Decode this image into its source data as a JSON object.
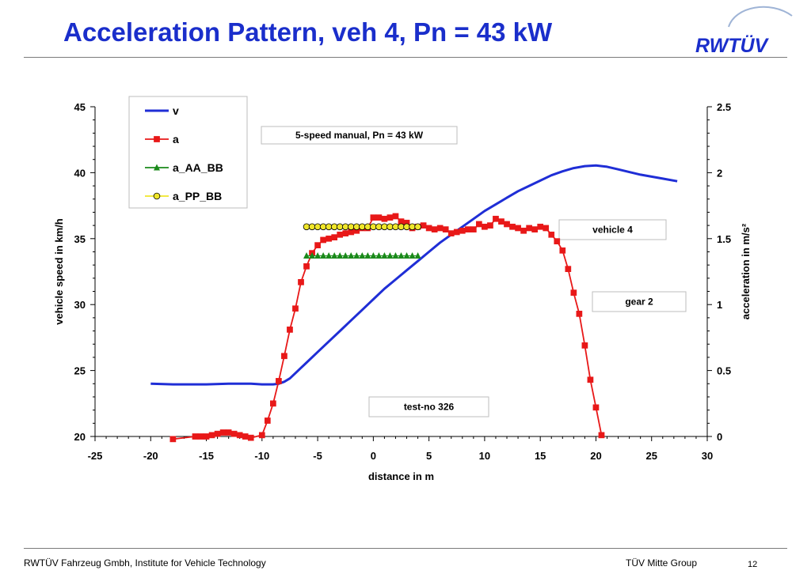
{
  "page": {
    "title": "Acceleration Pattern, veh 4, Pn = 43 kW",
    "logo_text": "RWTÜV",
    "footer_left": "RWTÜV Fahrzeug Gmbh, Institute for Vehicle Technology",
    "footer_mid": "TÜV Mitte Group",
    "page_number": "12",
    "colors": {
      "title": "#1a2ecb",
      "logo": "#1a2ecb"
    }
  },
  "chart_data": {
    "type": "line",
    "title": "",
    "xlabel": "distance in m",
    "ylabel": "vehicle speed in km/h",
    "y2label": "acceleration in m/s²",
    "xlim": [
      -25,
      30
    ],
    "ylim": [
      20,
      45
    ],
    "y2lim": [
      0,
      2.5
    ],
    "x_ticks": [
      "-25",
      "-20",
      "-15",
      "-10",
      "-5",
      "0",
      "5",
      "10",
      "15",
      "20",
      "25",
      "30"
    ],
    "y_ticks": [
      "20",
      "25",
      "30",
      "35",
      "40",
      "45"
    ],
    "y2_ticks": [
      "0",
      "0.5",
      "1",
      "1.5",
      "2",
      "2.5"
    ],
    "grid": false,
    "legend_position": "top-left",
    "annotations": [
      "5-speed manual, Pn = 43 kW",
      "vehicle 4",
      "gear 2",
      "test-no 326"
    ],
    "series": [
      {
        "name": "v",
        "axis": "left",
        "color": "#1f2ed6",
        "marker": "none",
        "x": [
          -20,
          -18,
          -15,
          -13,
          -11,
          -10,
          -9,
          -8.5,
          -8,
          -7.5,
          -7,
          -6,
          -5,
          -4,
          -3,
          -2,
          -1,
          0,
          1,
          2,
          3,
          4,
          5,
          6,
          7,
          8,
          9,
          10,
          11,
          12,
          13,
          14,
          15,
          16,
          17,
          18,
          19,
          20,
          21,
          22,
          23,
          24,
          25,
          26,
          27.3
        ],
        "values": [
          24.0,
          23.95,
          23.95,
          24.0,
          24.0,
          23.95,
          23.95,
          24.0,
          24.15,
          24.4,
          24.8,
          25.6,
          26.4,
          27.2,
          28.0,
          28.8,
          29.6,
          30.4,
          31.2,
          31.9,
          32.6,
          33.3,
          34.0,
          34.7,
          35.3,
          35.9,
          36.5,
          37.1,
          37.6,
          38.1,
          38.6,
          39.0,
          39.4,
          39.8,
          40.1,
          40.35,
          40.5,
          40.55,
          40.45,
          40.25,
          40.05,
          39.85,
          39.7,
          39.55,
          39.35
        ]
      },
      {
        "name": "a",
        "axis": "right",
        "color": "#e81818",
        "marker": "square",
        "x": [
          -18,
          -16,
          -15.5,
          -15,
          -14.5,
          -14,
          -13.5,
          -13,
          -12.5,
          -12,
          -11.5,
          -11,
          -10,
          -9.5,
          -9,
          -8.5,
          -8,
          -7.5,
          -7,
          -6.5,
          -6,
          -5.5,
          -5,
          -4.5,
          -4,
          -3.5,
          -3,
          -2.5,
          -2,
          -1.5,
          -1,
          -0.5,
          0,
          0.5,
          1,
          1.5,
          2,
          2.5,
          3,
          3.5,
          4,
          4.5,
          5,
          5.5,
          6,
          6.5,
          7,
          7.5,
          8,
          8.5,
          9,
          9.5,
          10,
          10.5,
          11,
          11.5,
          12,
          12.5,
          13,
          13.5,
          14,
          14.5,
          15,
          15.5,
          16,
          16.5,
          17,
          17.5,
          18,
          18.5,
          19,
          19.5,
          20,
          20.5
        ],
        "values": [
          -0.02,
          0.0,
          0.0,
          0.0,
          0.01,
          0.02,
          0.03,
          0.03,
          0.02,
          0.01,
          0.0,
          -0.01,
          0.01,
          0.12,
          0.25,
          0.42,
          0.61,
          0.81,
          0.97,
          1.17,
          1.29,
          1.39,
          1.45,
          1.49,
          1.5,
          1.51,
          1.53,
          1.54,
          1.55,
          1.56,
          1.58,
          1.58,
          1.66,
          1.66,
          1.65,
          1.66,
          1.67,
          1.63,
          1.62,
          1.58,
          1.59,
          1.6,
          1.58,
          1.57,
          1.58,
          1.57,
          1.54,
          1.55,
          1.56,
          1.57,
          1.57,
          1.61,
          1.59,
          1.6,
          1.65,
          1.63,
          1.61,
          1.59,
          1.58,
          1.56,
          1.58,
          1.57,
          1.59,
          1.58,
          1.53,
          1.48,
          1.41,
          1.27,
          1.09,
          0.93,
          0.69,
          0.43,
          0.22,
          0.01
        ]
      },
      {
        "name": "a_AA_BB",
        "axis": "right",
        "color": "#1a8a1a",
        "marker": "triangle",
        "x": [
          -6,
          -5.5,
          -5,
          -4.5,
          -4,
          -3.5,
          -3,
          -2.5,
          -2,
          -1.5,
          -1,
          -0.5,
          0,
          0.5,
          1,
          1.5,
          2,
          2.5,
          3,
          3.5,
          4
        ],
        "values": [
          1.37,
          1.37,
          1.37,
          1.37,
          1.37,
          1.37,
          1.37,
          1.37,
          1.37,
          1.37,
          1.37,
          1.37,
          1.37,
          1.37,
          1.37,
          1.37,
          1.37,
          1.37,
          1.37,
          1.37,
          1.37
        ]
      },
      {
        "name": "a_PP_BB",
        "axis": "right",
        "color": "#f0e62a",
        "marker": "circle",
        "x": [
          -6,
          -5.5,
          -5,
          -4.5,
          -4,
          -3.5,
          -3,
          -2.5,
          -2,
          -1.5,
          -1,
          -0.5,
          0,
          0.5,
          1,
          1.5,
          2,
          2.5,
          3,
          3.5,
          4
        ],
        "values": [
          1.59,
          1.59,
          1.59,
          1.59,
          1.59,
          1.59,
          1.59,
          1.59,
          1.59,
          1.59,
          1.59,
          1.59,
          1.59,
          1.59,
          1.59,
          1.59,
          1.59,
          1.59,
          1.59,
          1.59,
          1.59
        ]
      }
    ]
  }
}
